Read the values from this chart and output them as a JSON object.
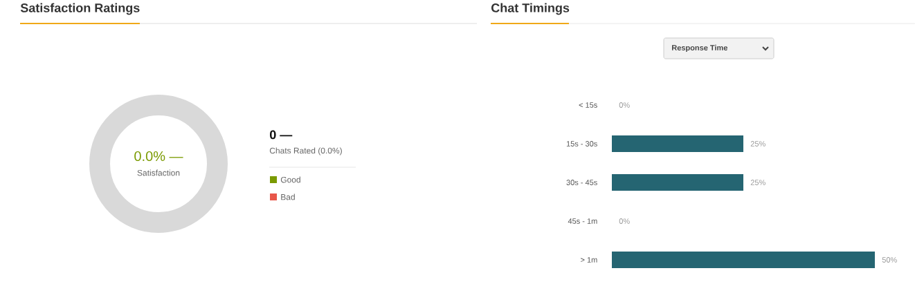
{
  "chart_data": [
    {
      "type": "other",
      "title": "Satisfaction Ratings",
      "categories": [
        "Good",
        "Bad"
      ],
      "colors": [
        "#7a9a01",
        "#e8574a"
      ],
      "annotations": [
        "0.0% —",
        "Satisfaction",
        "0 —",
        "Chats Rated (0.0%)"
      ]
    },
    {
      "type": "bar",
      "orientation": "horizontal",
      "title": "Chat Timings",
      "categories": [
        "< 15s",
        "15s - 30s",
        "30s - 45s",
        "45s - 1m",
        "> 1m"
      ],
      "values": [
        0,
        25,
        25,
        0,
        50
      ],
      "color": "#256572",
      "value_labels": [
        "0%",
        "25%",
        "25%",
        "0%",
        "50%"
      ],
      "annotations": [
        "Response Time"
      ]
    }
  ]
}
